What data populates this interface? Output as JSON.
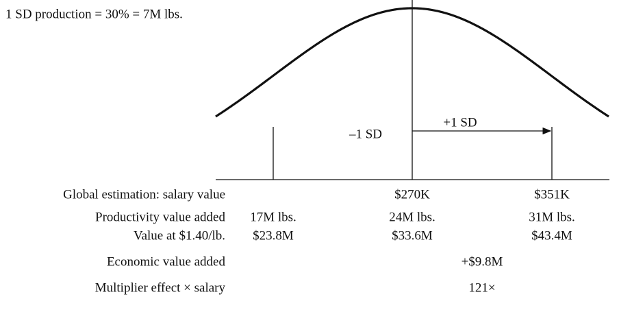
{
  "note": "1 SD production = 30% = 7M lbs.",
  "curve": {
    "minus_label": "–1 SD",
    "plus_label": "+1 SD"
  },
  "rows": [
    {
      "label": "Global estimation: salary value",
      "values": [
        "$270K",
        "$351K"
      ]
    },
    {
      "label": "Productivity value added",
      "values": [
        "17M lbs.",
        "24M lbs.",
        "31M lbs."
      ]
    },
    {
      "label": "Value at $1.40/lb.",
      "values": [
        "$23.8M",
        "$33.6M",
        "$43.4M"
      ]
    },
    {
      "label": "Economic value added",
      "values": [
        "+$9.8M"
      ]
    },
    {
      "label": "Multiplier effect × salary",
      "values": [
        "121×"
      ]
    }
  ]
}
